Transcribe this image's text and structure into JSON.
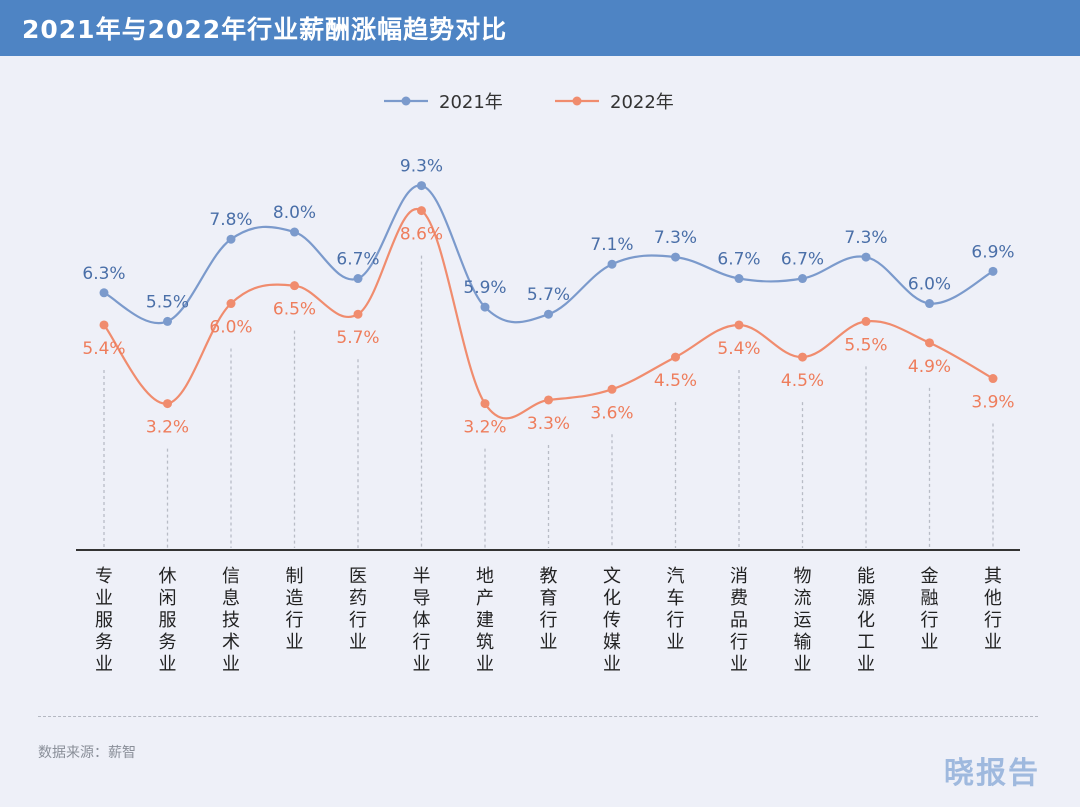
{
  "header": {
    "title": "2021年与2022年行业薪酬涨幅趋势对比"
  },
  "footer": {
    "source": "数据来源：薪智",
    "watermark": "晓报告"
  },
  "colors": {
    "s2021": "#7b9acc",
    "s2022": "#f08c6e",
    "header": "#4e84c4"
  },
  "chart_data": {
    "type": "line",
    "title": "2021年与2022年行业薪酬涨幅趋势对比",
    "categories": [
      "专业服务业",
      "休闲服务业",
      "信息技术业",
      "制造行业",
      "医药行业",
      "半导体行业",
      "地产建筑业",
      "教育行业",
      "文化传媒业",
      "汽车行业",
      "消费品行业",
      "物流运输业",
      "能源化工业",
      "金融行业",
      "其他行业"
    ],
    "series": [
      {
        "name": "2021年",
        "values": [
          6.3,
          5.5,
          7.8,
          8.0,
          6.7,
          9.3,
          5.9,
          5.7,
          7.1,
          7.3,
          6.7,
          6.7,
          7.3,
          6.0,
          6.9
        ],
        "labels": [
          "6.3%",
          "5.5%",
          "7.8%",
          "8.0%",
          "6.7%",
          "9.3%",
          "5.9%",
          "5.7%",
          "7.1%",
          "7.3%",
          "6.7%",
          "6.7%",
          "7.3%",
          "6.0%",
          "6.9%"
        ]
      },
      {
        "name": "2022年",
        "values": [
          5.4,
          3.2,
          6.0,
          6.5,
          5.7,
          8.6,
          3.2,
          3.3,
          3.6,
          4.5,
          5.4,
          4.5,
          5.5,
          4.9,
          3.9
        ],
        "labels": [
          "5.4%",
          "3.2%",
          "6.0%",
          "6.5%",
          "5.7%",
          "8.6%",
          "3.2%",
          "3.3%",
          "3.6%",
          "4.5%",
          "5.4%",
          "4.5%",
          "5.5%",
          "4.9%",
          "3.9%"
        ]
      }
    ],
    "legend": "top-center",
    "grid": false,
    "smooth": true
  }
}
